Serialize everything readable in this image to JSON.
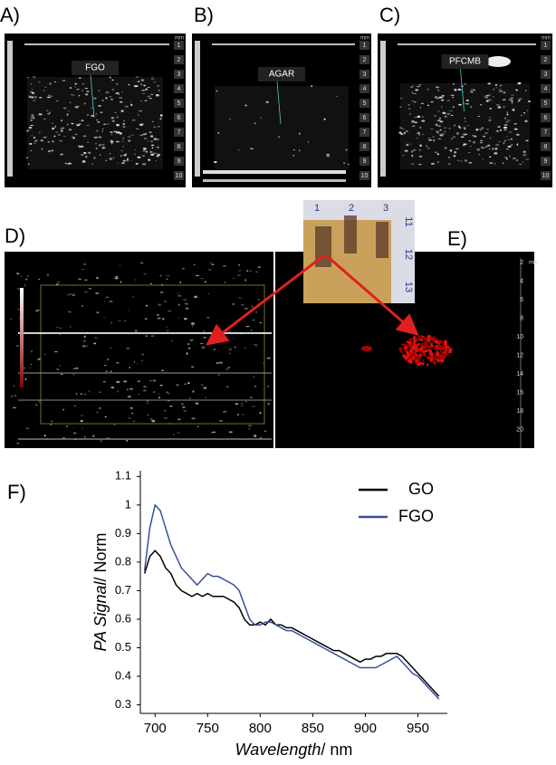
{
  "panels": [
    {
      "label": "A)",
      "annotation": "FGO",
      "scale": [
        "1",
        "2",
        "3",
        "4",
        "5",
        "6",
        "7",
        "8",
        "9",
        "10"
      ],
      "unit": "mm"
    },
    {
      "label": "B)",
      "annotation": "AGAR",
      "scale": [
        "1",
        "2",
        "3",
        "4",
        "5",
        "6",
        "7",
        "8",
        "9",
        "10"
      ],
      "unit": "mm"
    },
    {
      "label": "C)",
      "annotation": "PFCMB",
      "scale": [
        "1",
        "2",
        "3",
        "4",
        "5",
        "6",
        "7",
        "8",
        "9",
        "10"
      ],
      "unit": "mm"
    },
    {
      "label": "D)"
    },
    {
      "label": "E)",
      "scale": [
        "2",
        "4",
        "6",
        "8",
        "10",
        "12",
        "14",
        "16",
        "18",
        "20"
      ],
      "unit": "mm"
    }
  ],
  "ruler": {
    "top": [
      "1",
      "2",
      "3"
    ],
    "side": [
      "11",
      "12",
      "13"
    ]
  },
  "chart_data": {
    "type": "line",
    "label": "F)",
    "xlabel": {
      "italic": "Wavelength",
      "plain": "/ nm"
    },
    "ylabel": {
      "italic": "PA Signal",
      "plain": "/ Norm"
    },
    "x": [
      690,
      695,
      700,
      705,
      710,
      715,
      720,
      725,
      730,
      735,
      740,
      745,
      750,
      755,
      760,
      765,
      770,
      775,
      780,
      785,
      790,
      795,
      800,
      805,
      810,
      815,
      820,
      825,
      830,
      835,
      840,
      845,
      850,
      855,
      860,
      865,
      870,
      875,
      880,
      885,
      890,
      895,
      900,
      905,
      910,
      915,
      920,
      925,
      930,
      935,
      940,
      945,
      950,
      955,
      960,
      965,
      970
    ],
    "series": [
      {
        "name": "GO",
        "color": "#000000",
        "values": [
          0.76,
          0.82,
          0.84,
          0.82,
          0.78,
          0.76,
          0.72,
          0.7,
          0.69,
          0.68,
          0.69,
          0.68,
          0.69,
          0.68,
          0.68,
          0.68,
          0.67,
          0.66,
          0.64,
          0.6,
          0.58,
          0.58,
          0.59,
          0.58,
          0.6,
          0.58,
          0.58,
          0.57,
          0.57,
          0.56,
          0.55,
          0.54,
          0.53,
          0.52,
          0.51,
          0.5,
          0.49,
          0.49,
          0.48,
          0.47,
          0.46,
          0.45,
          0.46,
          0.46,
          0.47,
          0.47,
          0.48,
          0.48,
          0.48,
          0.47,
          0.45,
          0.43,
          0.41,
          0.39,
          0.37,
          0.35,
          0.33
        ]
      },
      {
        "name": "FGO",
        "color": "#3a4fa0",
        "values": [
          0.77,
          0.92,
          1.0,
          0.98,
          0.92,
          0.86,
          0.82,
          0.78,
          0.76,
          0.74,
          0.72,
          0.74,
          0.76,
          0.75,
          0.75,
          0.74,
          0.73,
          0.72,
          0.7,
          0.65,
          0.6,
          0.58,
          0.58,
          0.59,
          0.59,
          0.58,
          0.57,
          0.56,
          0.56,
          0.55,
          0.54,
          0.53,
          0.52,
          0.51,
          0.5,
          0.49,
          0.48,
          0.47,
          0.46,
          0.45,
          0.44,
          0.43,
          0.43,
          0.43,
          0.43,
          0.44,
          0.45,
          0.46,
          0.47,
          0.45,
          0.43,
          0.41,
          0.4,
          0.38,
          0.36,
          0.34,
          0.32
        ]
      }
    ],
    "xlim": [
      686,
      978
    ],
    "xticks": [
      700,
      750,
      800,
      850,
      900,
      950
    ],
    "ylim": [
      0.27,
      1.12
    ],
    "yticks": [
      0.3,
      0.4,
      0.5,
      0.6,
      0.7,
      0.8,
      0.9,
      1,
      1.1
    ]
  }
}
